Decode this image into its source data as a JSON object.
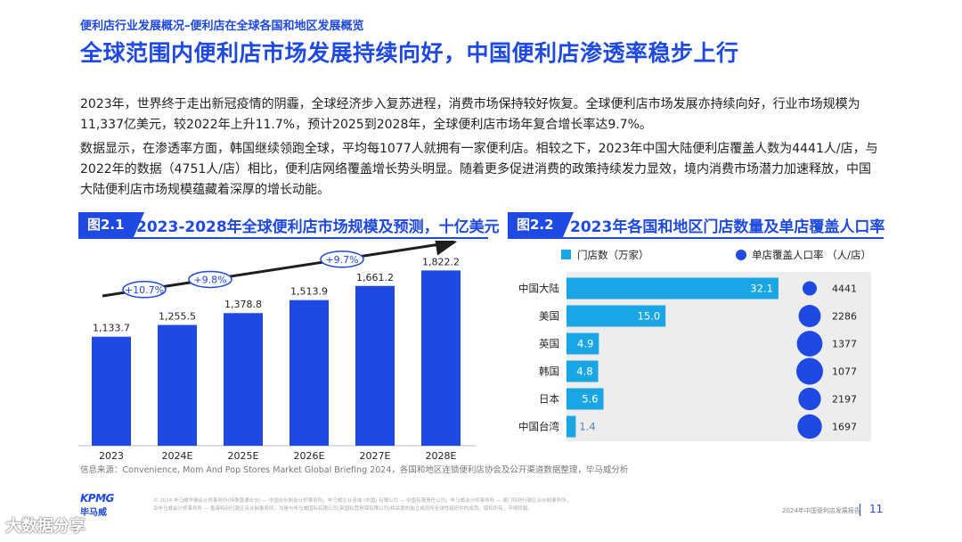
{
  "header": {
    "breadcrumb": "便利店行业发展概况–便利店在全球各国和地区发展概览",
    "title": "全球范围内便利店市场发展持续向好，中国便利店渗透率稳步上行"
  },
  "body": {
    "paragraph1": "2023年，世界终于走出新冠疫情的阴霾，全球经济步入复苏进程，消费市场保持较好恢复。全球便利店市场发展亦持续向好，行业市场规模为11,337亿美元，较2022年上升11.7%，预计2025到2028年，全球便利店市场年复合增长率达9.7%。",
    "paragraph2": "数据显示，在渗透率方面，韩国继续领跑全球，平均每1077人就拥有一家便利店。相较之下，2023年中国大陆便利店覆盖人数为4441人/店，与2022年的数据（4751人/店）相比，便利店网络覆盖增长势头明显。随着更多促进消费的政策持续发力显效，境内消费市场潜力加速释放，中国大陆便利店市场规模蕴藏着深厚的增长动能。"
  },
  "figure1": {
    "tag": "图2.1",
    "title": "2023-2028年全球便利店市场规模及预测，十亿美元"
  },
  "figure2": {
    "tag": "图2.2",
    "title": "2023年各国和地区门店数量及单店覆盖人口率"
  },
  "chart_data": [
    {
      "type": "bar",
      "title": "2023-2028年全球便利店市场规模及预测，十亿美元",
      "categories": [
        "2023",
        "2024E",
        "2025E",
        "2026E",
        "2027E",
        "2028E"
      ],
      "values": [
        1133.7,
        1255.5,
        1378.8,
        1513.9,
        1661.2,
        1822.2
      ],
      "value_labels": [
        "1,133.7",
        "1,255.5",
        "1,378.8",
        "1,513.9",
        "1,661.2",
        "1,822.2"
      ],
      "annotations": [
        "+10.7%",
        "+9.8%",
        "+9.7%"
      ],
      "ylim": [
        0,
        1900
      ],
      "color": "#1e49e2"
    },
    {
      "type": "bar",
      "orientation": "horizontal",
      "title": "2023年各国和地区门店数量及单店覆盖人口率",
      "categories": [
        "中国大陆",
        "美国",
        "英国",
        "韩国",
        "日本",
        "中国台湾"
      ],
      "series": [
        {
          "name": "门店数（万家）",
          "values": [
            32.1,
            15.0,
            4.9,
            4.8,
            5.6,
            1.4
          ],
          "labels": [
            "32.1",
            "15.0",
            "4.9",
            "4.8",
            "5.6",
            "1.4"
          ],
          "color": "#1aa6e4"
        },
        {
          "name": "单店覆盖人口率 （人/店）",
          "values": [
            4441,
            2286,
            1377,
            1077,
            2197,
            1697
          ],
          "labels": [
            "4441",
            "2286",
            "1377",
            "1077",
            "2197",
            "1697"
          ],
          "color": "#1e49e2"
        }
      ],
      "xlim": [
        0,
        34
      ]
    }
  ],
  "source": "信息来源：Convenience, Mom And Pop Stores Market Global Briefing 2024，各国和地区连锁便利店协会及公开渠道数据整理，毕马威分析",
  "footer": {
    "logo_top": "KPMG",
    "logo_bottom": "毕马威",
    "legal_line1": "© 2024 毕马威华振会计师事务所(特殊普通合伙) — 中国合伙制会计师事务所，毕马威企业咨询 (中国) 有限公司 — 中国有限责任公司，毕马威会计师事务所 — 澳门特别行政区合伙制事务所，",
    "legal_line2": "及毕马威会计师事务所 — 香港特别行政区合伙制事务所，均是与毕马威国际有限公司(英国私营担保有限公司)相关联的独立成员所全球性组织中的成员。版权所有，不得转载。",
    "report_name": "2024年中国便利店发展报告",
    "page_number": "11",
    "watermark": "大数据分享"
  }
}
